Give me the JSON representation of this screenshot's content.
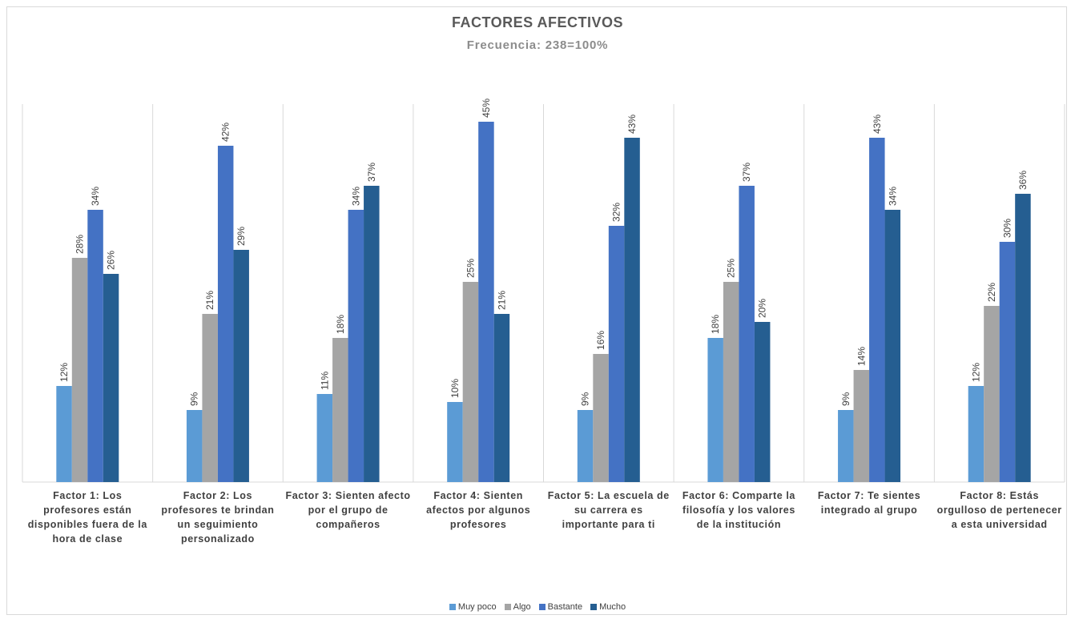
{
  "chart_data": {
    "type": "bar",
    "title": "FACTORES AFECTIVOS",
    "subtitle": "Frecuencia: 238=100%",
    "categories": [
      "Factor 1: Los profesores están disponibles fuera de la hora de clase",
      "Factor 2: Los profesores te brindan un seguimiento personalizado",
      "Factor 3: Sienten afecto por el grupo de compañeros",
      "Factor 4: Sienten afectos por algunos profesores",
      "Factor 5: La escuela de su carrera es importante para ti",
      "Factor 6: Comparte la filosofía y los valores de la institución",
      "Factor 7: Te sientes integrado al grupo",
      "Factor 8: Estás orgulloso de pertenecer a esta universidad"
    ],
    "series": [
      {
        "name": "Muy poco",
        "color": "#5b9bd5",
        "values": [
          12,
          9,
          11,
          10,
          9,
          18,
          9,
          12
        ]
      },
      {
        "name": "Algo",
        "color": "#a5a5a5",
        "values": [
          28,
          21,
          18,
          25,
          16,
          25,
          14,
          22
        ]
      },
      {
        "name": "Bastante",
        "color": "#4472c4",
        "values": [
          34,
          42,
          34,
          45,
          32,
          37,
          43,
          30
        ]
      },
      {
        "name": "Mucho",
        "color": "#255e91",
        "values": [
          26,
          29,
          37,
          21,
          43,
          20,
          34,
          36
        ]
      }
    ],
    "value_suffix": "%",
    "ylim": [
      0,
      50
    ],
    "grid": "vertical category separators",
    "legend": "bottom-center"
  }
}
